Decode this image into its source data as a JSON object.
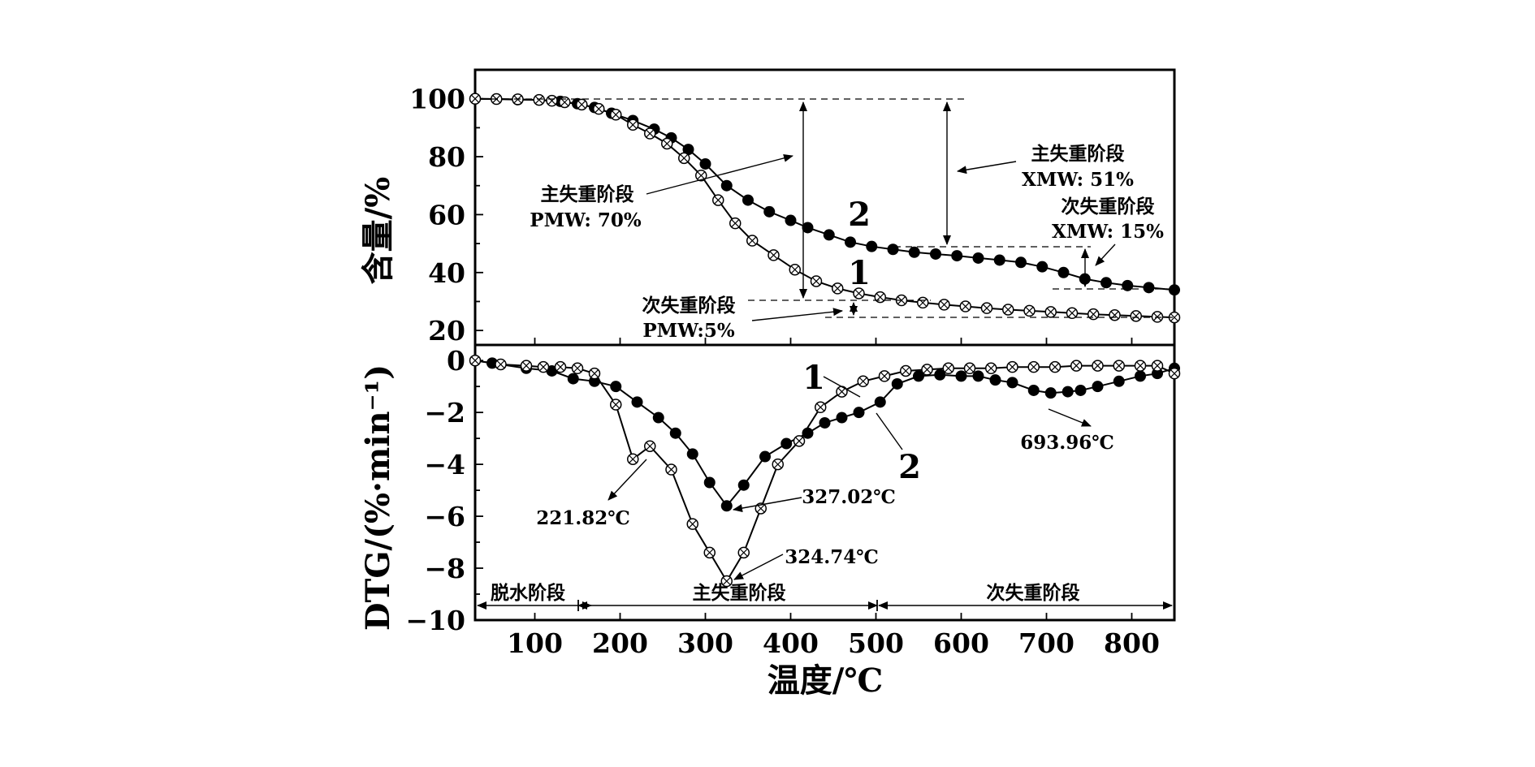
{
  "chart_data": [
    {
      "type": "line",
      "panel": "top",
      "title": "",
      "xlabel": "温度/℃",
      "ylabel": "含量/%",
      "xlim": [
        30,
        850
      ],
      "ylim": [
        15,
        110
      ],
      "yticks": [
        20,
        40,
        60,
        80,
        100
      ],
      "yticklabels": [
        "20",
        "40",
        "60",
        "80",
        "100"
      ],
      "series": [
        {
          "name": "2",
          "marker": "filled-circle",
          "x": [
            30,
            55,
            80,
            105,
            130,
            150,
            170,
            190,
            215,
            240,
            260,
            280,
            300,
            325,
            350,
            375,
            400,
            420,
            445,
            470,
            495,
            520,
            545,
            570,
            595,
            620,
            645,
            670,
            695,
            720,
            745,
            770,
            795,
            820,
            850
          ],
          "values": [
            100,
            99.9,
            99.7,
            99.6,
            99.1,
            98.3,
            97,
            95,
            92.5,
            89.5,
            86.5,
            82.5,
            77.5,
            70,
            65,
            61,
            58,
            55.5,
            53,
            50.5,
            49,
            48,
            47,
            46.4,
            45.8,
            45,
            44.3,
            43.5,
            42,
            40,
            37.8,
            36.5,
            35.5,
            34.8,
            34
          ]
        },
        {
          "name": "1",
          "marker": "crossed-circle",
          "x": [
            30,
            55,
            80,
            105,
            120,
            135,
            155,
            175,
            195,
            215,
            235,
            255,
            275,
            295,
            315,
            335,
            355,
            380,
            405,
            430,
            455,
            480,
            505,
            530,
            555,
            580,
            605,
            630,
            655,
            680,
            705,
            730,
            755,
            780,
            805,
            830,
            850
          ],
          "values": [
            100,
            99.9,
            99.8,
            99.6,
            99.3,
            98.8,
            98,
            96.5,
            94.5,
            91,
            88,
            84.5,
            79.5,
            73.5,
            65,
            57,
            51,
            46,
            41,
            37,
            34.5,
            32.8,
            31.5,
            30.4,
            29.6,
            28.9,
            28.3,
            27.7,
            27.2,
            26.8,
            26.4,
            26,
            25.6,
            25.3,
            25,
            24.7,
            24.5
          ]
        }
      ],
      "annotations": {
        "pmw_main": [
          "主失重阶段",
          "PMW: 70%"
        ],
        "xmw_main": [
          "主失重阶段",
          "XMW: 51%"
        ],
        "xmw_minor": [
          "次失重阶段",
          "XMW: 15%"
        ],
        "pmw_minor": [
          "次失重阶段",
          "PMW:5%"
        ]
      }
    },
    {
      "type": "line",
      "panel": "bottom",
      "title": "",
      "xlabel": "温度/℃",
      "ylabel": "DTG/(%·min⁻¹)",
      "xlim": [
        30,
        850
      ],
      "ylim": [
        -10,
        0.6
      ],
      "xticks": [
        100,
        200,
        300,
        400,
        500,
        600,
        700,
        800
      ],
      "xticklabels": [
        "100",
        "200",
        "300",
        "400",
        "500",
        "600",
        "700",
        "800"
      ],
      "yticks": [
        0,
        -2,
        -4,
        -6,
        -8,
        -10
      ],
      "yticklabels": [
        "0",
        "−2",
        "−4",
        "−6",
        "−8",
        "−10"
      ],
      "series": [
        {
          "name": "2",
          "marker": "filled-circle",
          "x": [
            30,
            50,
            90,
            120,
            145,
            170,
            195,
            220,
            245,
            265,
            285,
            305,
            325,
            345,
            370,
            395,
            420,
            440,
            460,
            480,
            505,
            525,
            550,
            575,
            600,
            620,
            640,
            660,
            685,
            705,
            725,
            740,
            760,
            785,
            810,
            830,
            850
          ],
          "values": [
            0,
            -0.1,
            -0.3,
            -0.4,
            -0.7,
            -0.8,
            -1.0,
            -1.6,
            -2.2,
            -2.8,
            -3.6,
            -4.7,
            -5.6,
            -4.8,
            -3.7,
            -3.2,
            -2.8,
            -2.4,
            -2.2,
            -2.0,
            -1.6,
            -0.9,
            -0.6,
            -0.55,
            -0.6,
            -0.6,
            -0.75,
            -0.85,
            -1.15,
            -1.25,
            -1.2,
            -1.15,
            -1.0,
            -0.8,
            -0.6,
            -0.5,
            -0.3
          ]
        },
        {
          "name": "1",
          "marker": "crossed-circle",
          "x": [
            30,
            60,
            90,
            110,
            130,
            150,
            170,
            195,
            215,
            235,
            260,
            285,
            305,
            325,
            345,
            365,
            385,
            410,
            435,
            460,
            485,
            510,
            535,
            560,
            585,
            610,
            635,
            660,
            685,
            710,
            735,
            760,
            785,
            810,
            830,
            850
          ],
          "values": [
            0,
            -0.15,
            -0.2,
            -0.25,
            -0.25,
            -0.3,
            -0.5,
            -1.7,
            -3.8,
            -3.3,
            -4.2,
            -6.3,
            -7.4,
            -8.5,
            -7.4,
            -5.7,
            -4.0,
            -3.1,
            -1.8,
            -1.2,
            -0.8,
            -0.6,
            -0.4,
            -0.35,
            -0.3,
            -0.3,
            -0.3,
            -0.25,
            -0.25,
            -0.25,
            -0.2,
            -0.2,
            -0.2,
            -0.2,
            -0.2,
            -0.5
          ]
        }
      ],
      "annotations": {
        "peak1": "221.82℃",
        "peak2": "327.02℃",
        "peak3": "324.74℃",
        "peak4": "693.96℃",
        "stage_dehydration": "脱水阶段",
        "stage_main": "主失重阶段",
        "stage_minor": "次失重阶段"
      }
    }
  ]
}
